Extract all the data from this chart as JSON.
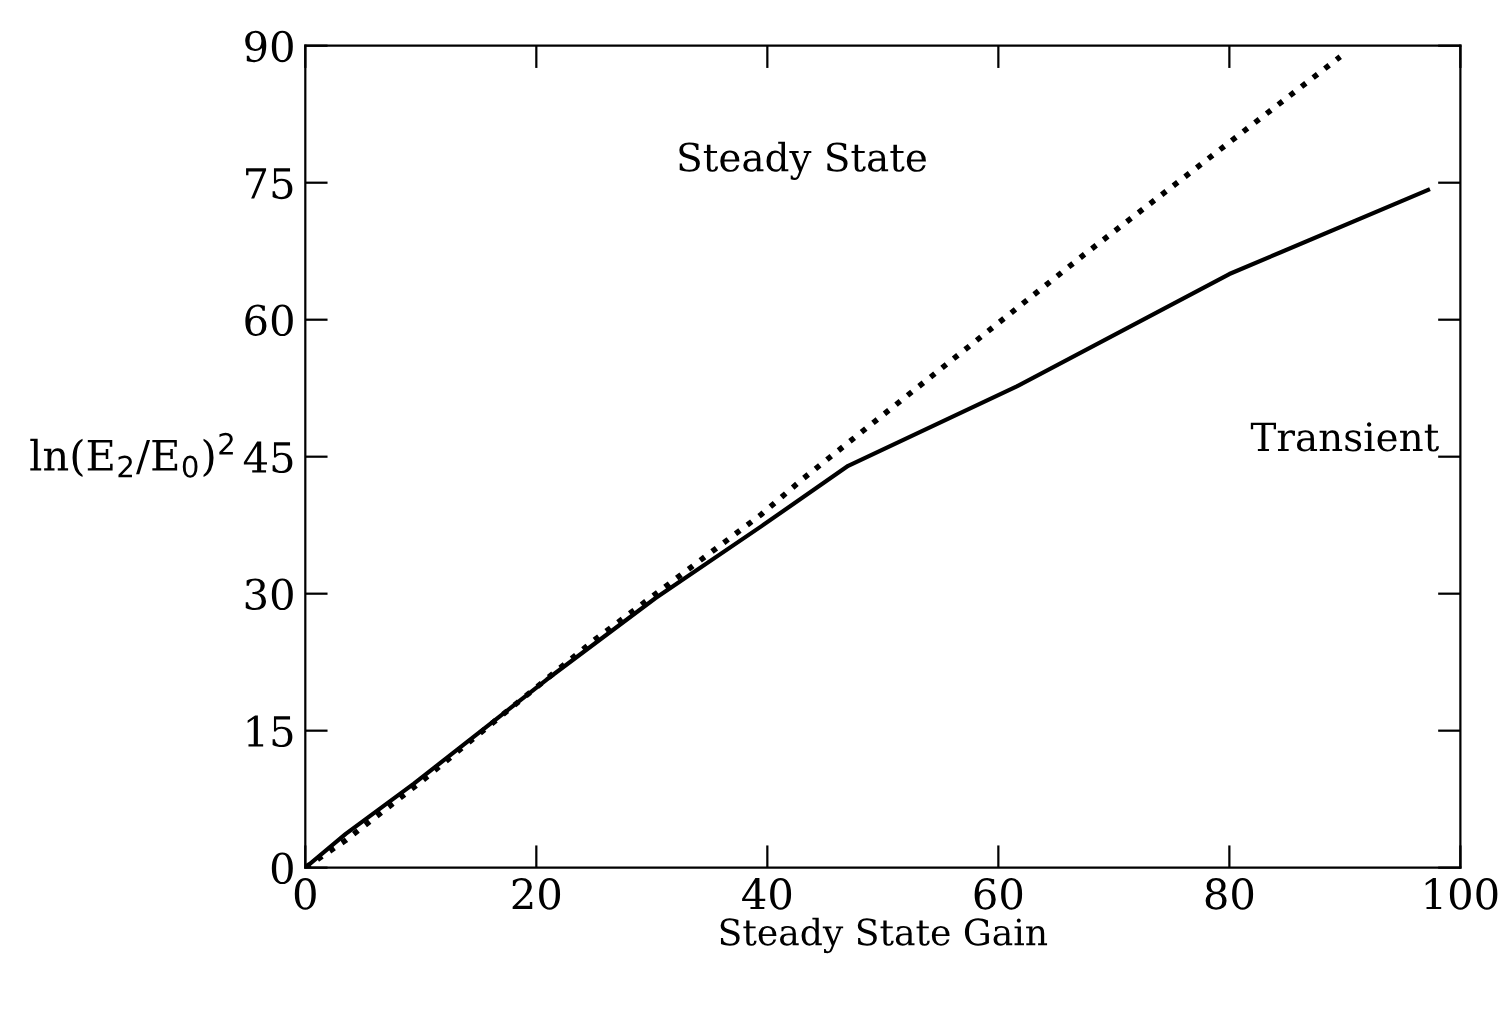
{
  "chart_data": {
    "type": "line",
    "xlabel": "Steady State Gain",
    "ylabel": "ln(E$_{2}$/E$_{0}$)$^{2}$",
    "xlim": [
      0,
      100
    ],
    "ylim": [
      0,
      90
    ],
    "xticks": [
      0,
      20,
      40,
      60,
      80,
      100
    ],
    "yticks": [
      0,
      15,
      30,
      45,
      60,
      75,
      90
    ],
    "grid": false,
    "legend": false,
    "annotations": [
      "Steady State",
      "Transient"
    ],
    "series": [
      {
        "color": "#000000",
        "line_style": "solid",
        "x": [
          0,
          3.5,
          9.4,
          20.9,
          30.3,
          39.5,
          47,
          61.6,
          80,
          97.2
        ],
        "values": [
          0,
          3.7,
          9.2,
          20.6,
          29.5,
          37.4,
          44,
          52.7,
          65,
          74.2
        ]
      },
      {
        "color": "#000000",
        "line_style": "dotted",
        "x": [
          0,
          3.5,
          10,
          15.1,
          25,
          39.5,
          43,
          67.3,
          89.6
        ],
        "values": [
          0,
          3,
          9.4,
          14.7,
          24.9,
          38.7,
          42.5,
          67,
          88.8
        ]
      }
    ]
  }
}
